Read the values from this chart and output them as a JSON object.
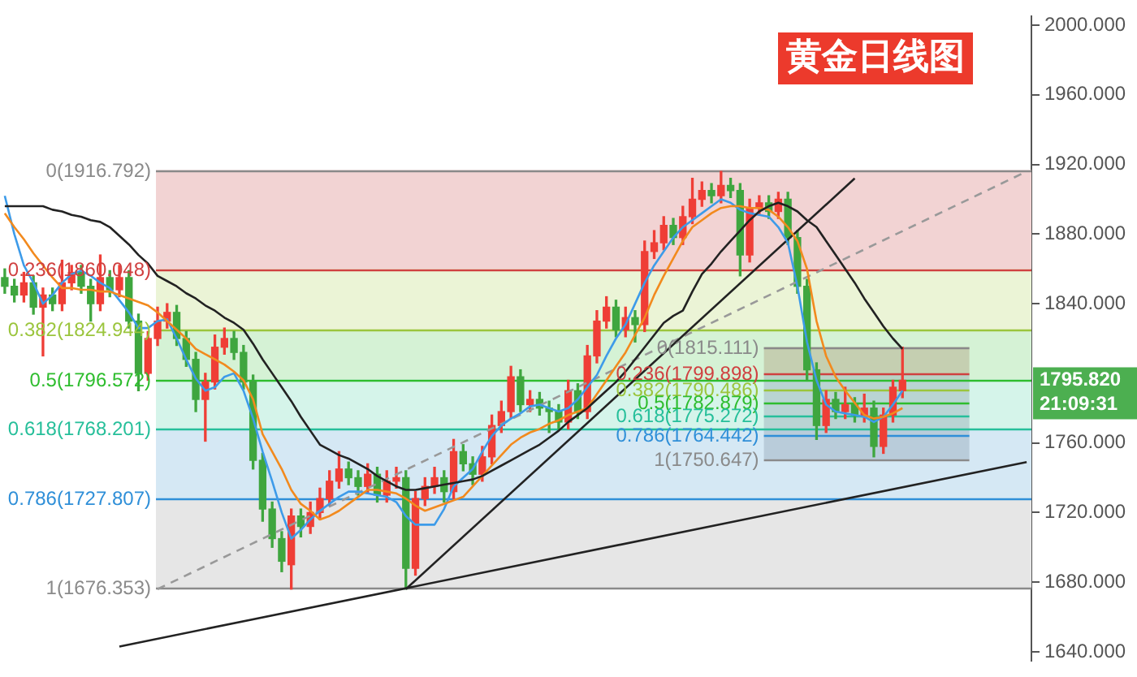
{
  "chart_data": {
    "type": "candlestick",
    "title": "黄金日线图",
    "categories": [
      null,
      null,
      null,
      null,
      null,
      null,
      null,
      null,
      null,
      null,
      null,
      null,
      null,
      null,
      null,
      null,
      null,
      null,
      null,
      null,
      null,
      null,
      null,
      null,
      null,
      null,
      null,
      null,
      null,
      null,
      null,
      null,
      null,
      null,
      null,
      null,
      null,
      null,
      null,
      null,
      null,
      null,
      null,
      null,
      null,
      null,
      null,
      null,
      null,
      null,
      null,
      null,
      null,
      null,
      null,
      null,
      null,
      null,
      null,
      null,
      null,
      null,
      null,
      null,
      null,
      null,
      null,
      null,
      null,
      null,
      null,
      null,
      null,
      null,
      null,
      null,
      null,
      null,
      null,
      null,
      null,
      null,
      null,
      null,
      null,
      null,
      null,
      null,
      null,
      null,
      null,
      null,
      null,
      null,
      null,
      null,
      null,
      null,
      null,
      null,
      null,
      null,
      null,
      null,
      null,
      null,
      null,
      null
    ],
    "series": [
      {
        "type": "line",
        "color": "#222222",
        "values": [
          1896,
          1896,
          1896,
          1896,
          1896,
          1894,
          1893,
          1891,
          1890,
          1888,
          1887,
          1884,
          1879,
          1874,
          1868,
          1863,
          1856,
          1853,
          1850,
          1846,
          1843,
          1839,
          1836,
          1832,
          1829,
          1825,
          1817,
          1808,
          1800,
          1792,
          1784,
          1775,
          1767,
          1759,
          1756,
          1753,
          1751,
          1748,
          1745,
          1741,
          1738,
          1735,
          1733,
          1733,
          1734,
          1735,
          1736,
          1737,
          1738,
          1739,
          1741,
          1744,
          1747,
          1750,
          1753,
          1756,
          1759,
          1763,
          1767,
          1772,
          1776,
          1780,
          1785,
          1790,
          1795,
          1801,
          1808,
          1815,
          1822,
          1829,
          1833,
          1836,
          1847,
          1857,
          1863,
          1870,
          1876,
          1882,
          1888,
          1893,
          1896,
          1898,
          1896,
          1893,
          1888,
          1884,
          1876,
          1868,
          1860,
          1852,
          1843,
          1835,
          1827,
          1820,
          1814,
          null,
          null,
          null,
          null,
          null,
          null,
          null,
          null,
          null,
          null,
          null,
          null,
          null
        ]
      },
      {
        "type": "line",
        "color": "#f28a1e",
        "values": [
          1892,
          1884,
          1877,
          1869,
          1862,
          1855,
          1849,
          1849,
          1848,
          1848,
          1847,
          1847,
          1845,
          1843,
          1841,
          1839,
          1835,
          1830,
          1825,
          1820,
          1814,
          1811,
          1808,
          1805,
          1801,
          1796,
          1785,
          1765,
          1755,
          1745,
          1733,
          1725,
          1721,
          1716,
          1718,
          1721,
          1725,
          1729,
          1733,
          1733,
          1732,
          1731,
          1728,
          1724,
          1721,
          1723,
          1725,
          1727,
          1729,
          1735,
          1741,
          1747,
          1753,
          1759,
          1763,
          1766,
          1768,
          1771,
          1773,
          1776,
          1778,
          1780,
          1788,
          1796,
          1804,
          1812,
          1822,
          1832,
          1845,
          1856,
          1866,
          1876,
          1884,
          1888,
          1892,
          1895,
          1896,
          1896,
          1895,
          1895,
          1894,
          1890,
          1884,
          1876,
          1860,
          1830,
          1810,
          1798,
          1790,
          1783,
          1776,
          1774,
          1775,
          1777,
          1780,
          null,
          null,
          null,
          null,
          null,
          null,
          null,
          null,
          null,
          null,
          null,
          null,
          null
        ]
      },
      {
        "type": "line",
        "color": "#3d9be9",
        "values": [
          1902,
          1880,
          1862,
          1852,
          1840,
          1845,
          1852,
          1857,
          1859,
          1856,
          1852,
          1849,
          1842,
          1835,
          1826,
          1826,
          1830,
          1831,
          1820,
          1808,
          1797,
          1790,
          1792,
          1798,
          1800,
          1790,
          1774,
          1755,
          1738,
          1720,
          1705,
          1710,
          1716,
          1721,
          1725,
          1729,
          1732,
          1732,
          1731,
          1730,
          1729,
          1726,
          1718,
          1713,
          1713,
          1713,
          1722,
          1735,
          1740,
          1745,
          1755,
          1764,
          1770,
          1774,
          1777,
          1781,
          1782,
          1780,
          1778,
          1780,
          1785,
          1792,
          1799,
          1810,
          1820,
          1828,
          1840,
          1852,
          1862,
          1870,
          1878,
          1884,
          1888,
          1892,
          1896,
          1900,
          1898,
          1894,
          1892,
          1891,
          1890,
          1884,
          1875,
          1850,
          1818,
          1796,
          1782,
          1778,
          1777,
          1776,
          1775,
          1772,
          1775,
          1782,
          1790,
          null,
          null,
          null,
          null,
          null,
          null,
          null,
          null,
          null,
          null,
          null,
          null,
          null
        ]
      },
      {
        "type": "line",
        "color": "#222222",
        "values": [
          null,
          null,
          null,
          null,
          null,
          null,
          null,
          null,
          null,
          null,
          null,
          null,
          1643,
          null,
          null,
          null,
          null,
          null,
          null,
          null,
          null,
          null,
          null,
          null,
          null,
          null,
          null,
          null,
          null,
          null,
          null,
          null,
          null,
          null,
          null,
          null,
          null,
          null,
          null,
          null,
          null,
          null,
          null,
          null,
          null,
          null,
          null,
          null,
          null,
          null,
          null,
          null,
          null,
          null,
          null,
          null,
          null,
          null,
          null,
          null,
          null,
          null,
          null,
          null,
          null,
          null,
          null,
          null,
          null,
          null,
          null,
          null,
          null,
          null,
          null,
          null,
          null,
          null,
          null,
          null,
          null,
          null,
          null,
          null,
          null,
          null,
          null,
          null,
          null,
          null,
          null,
          null,
          null,
          null,
          null,
          null,
          null,
          null,
          null,
          null,
          null,
          null,
          null,
          null,
          null,
          null,
          null,
          1749
        ]
      },
      {
        "type": "line",
        "color": "#222222",
        "values": [
          null,
          null,
          null,
          null,
          null,
          null,
          null,
          null,
          null,
          null,
          null,
          null,
          null,
          null,
          null,
          null,
          null,
          null,
          null,
          null,
          null,
          null,
          null,
          null,
          null,
          null,
          null,
          null,
          null,
          null,
          null,
          null,
          null,
          null,
          null,
          null,
          null,
          null,
          null,
          null,
          null,
          null,
          1676,
          null,
          null,
          null,
          null,
          null,
          null,
          null,
          null,
          null,
          null,
          null,
          null,
          null,
          null,
          null,
          null,
          null,
          null,
          null,
          null,
          null,
          null,
          null,
          null,
          null,
          null,
          null,
          null,
          null,
          null,
          null,
          null,
          null,
          null,
          null,
          null,
          null,
          null,
          null,
          null,
          null,
          null,
          null,
          null,
          null,
          null,
          1912,
          null,
          null,
          null,
          null,
          null,
          null,
          null,
          null,
          null,
          null,
          null,
          null,
          null,
          null,
          null,
          null,
          null,
          null
        ]
      },
      {
        "type": "line",
        "color": "#999999",
        "line_style": "dashed",
        "values": [
          null,
          null,
          null,
          null,
          null,
          null,
          null,
          null,
          null,
          null,
          null,
          null,
          null,
          null,
          null,
          null,
          1676,
          null,
          null,
          null,
          null,
          null,
          null,
          null,
          null,
          null,
          null,
          null,
          null,
          null,
          null,
          null,
          null,
          null,
          null,
          null,
          null,
          null,
          null,
          null,
          null,
          null,
          null,
          null,
          null,
          null,
          null,
          null,
          null,
          null,
          null,
          null,
          null,
          null,
          null,
          null,
          null,
          null,
          null,
          null,
          null,
          null,
          null,
          null,
          null,
          null,
          null,
          null,
          null,
          null,
          null,
          null,
          null,
          null,
          null,
          null,
          null,
          null,
          null,
          null,
          null,
          null,
          null,
          null,
          null,
          null,
          null,
          null,
          null,
          null,
          null,
          null,
          null,
          null,
          null,
          null,
          null,
          null,
          null,
          null,
          null,
          null,
          null,
          null,
          null,
          null,
          null,
          1916
        ]
      },
      {
        "type": "candlestick",
        "ohlc": [
          [
            1855,
            1860,
            1846,
            1850
          ],
          [
            1850,
            1854,
            1841,
            1845
          ],
          [
            1845,
            1858,
            1841,
            1852
          ],
          [
            1852,
            1856,
            1834,
            1838
          ],
          [
            1838,
            1849,
            1810,
            1845
          ],
          [
            1845,
            1849,
            1836,
            1840
          ],
          [
            1840,
            1865,
            1836,
            1852
          ],
          [
            1852,
            1862,
            1848,
            1858
          ],
          [
            1858,
            1862,
            1846,
            1850
          ],
          [
            1850,
            1854,
            1830,
            1840
          ],
          [
            1840,
            1868,
            1836,
            1855
          ],
          [
            1855,
            1859,
            1844,
            1848
          ],
          [
            1848,
            1862,
            1844,
            1855
          ],
          [
            1855,
            1859,
            1826,
            1830
          ],
          [
            1830,
            1834,
            1790,
            1800
          ],
          [
            1800,
            1824,
            1796,
            1820
          ],
          [
            1820,
            1838,
            1816,
            1830
          ],
          [
            1830,
            1840,
            1826,
            1835
          ],
          [
            1835,
            1839,
            1816,
            1820
          ],
          [
            1820,
            1824,
            1804,
            1808
          ],
          [
            1808,
            1812,
            1778,
            1785
          ],
          [
            1785,
            1800,
            1761,
            1795
          ],
          [
            1795,
            1822,
            1791,
            1815
          ],
          [
            1815,
            1826,
            1811,
            1820
          ],
          [
            1820,
            1824,
            1808,
            1812
          ],
          [
            1812,
            1816,
            1791,
            1795
          ],
          [
            1795,
            1799,
            1745,
            1750
          ],
          [
            1750,
            1754,
            1715,
            1722
          ],
          [
            1722,
            1726,
            1700,
            1705
          ],
          [
            1705,
            1709,
            1686,
            1692
          ],
          [
            1690,
            1722,
            1676,
            1718
          ],
          [
            1718,
            1722,
            1706,
            1712
          ],
          [
            1712,
            1726,
            1708,
            1720
          ],
          [
            1720,
            1734,
            1716,
            1728
          ],
          [
            1728,
            1744,
            1724,
            1738
          ],
          [
            1738,
            1755,
            1734,
            1745
          ],
          [
            1745,
            1749,
            1736,
            1740
          ],
          [
            1740,
            1744,
            1730,
            1735
          ],
          [
            1735,
            1748,
            1731,
            1742
          ],
          [
            1742,
            1746,
            1726,
            1730
          ],
          [
            1730,
            1744,
            1726,
            1738
          ],
          [
            1738,
            1746,
            1734,
            1740
          ],
          [
            1740,
            1744,
            1676,
            1688
          ],
          [
            1688,
            1732,
            1684,
            1728
          ],
          [
            1728,
            1740,
            1724,
            1735
          ],
          [
            1735,
            1746,
            1731,
            1740
          ],
          [
            1740,
            1744,
            1726,
            1732
          ],
          [
            1732,
            1762,
            1728,
            1755
          ],
          [
            1755,
            1759,
            1744,
            1748
          ],
          [
            1748,
            1752,
            1736,
            1742
          ],
          [
            1742,
            1758,
            1738,
            1752
          ],
          [
            1752,
            1776,
            1748,
            1770
          ],
          [
            1770,
            1784,
            1766,
            1778
          ],
          [
            1778,
            1804,
            1774,
            1798
          ],
          [
            1798,
            1802,
            1778,
            1782
          ],
          [
            1782,
            1790,
            1778,
            1785
          ],
          [
            1785,
            1789,
            1776,
            1780
          ],
          [
            1780,
            1784,
            1766,
            1778
          ],
          [
            1778,
            1782,
            1768,
            1772
          ],
          [
            1772,
            1796,
            1768,
            1790
          ],
          [
            1790,
            1794,
            1774,
            1778
          ],
          [
            1778,
            1816,
            1774,
            1810
          ],
          [
            1810,
            1836,
            1806,
            1830
          ],
          [
            1830,
            1844,
            1826,
            1838
          ],
          [
            1838,
            1842,
            1821,
            1825
          ],
          [
            1825,
            1838,
            1821,
            1832
          ],
          [
            1832,
            1836,
            1818,
            1828
          ],
          [
            1828,
            1876,
            1824,
            1870
          ],
          [
            1870,
            1882,
            1866,
            1875
          ],
          [
            1875,
            1890,
            1871,
            1885
          ],
          [
            1885,
            1889,
            1874,
            1878
          ],
          [
            1878,
            1896,
            1874,
            1890
          ],
          [
            1890,
            1912,
            1886,
            1900
          ],
          [
            1900,
            1910,
            1896,
            1905
          ],
          [
            1905,
            1909,
            1898,
            1902
          ],
          [
            1902,
            1916,
            1898,
            1908
          ],
          [
            1908,
            1912,
            1901,
            1905
          ],
          [
            1905,
            1909,
            1856,
            1868
          ],
          [
            1868,
            1900,
            1864,
            1895
          ],
          [
            1895,
            1902,
            1891,
            1898
          ],
          [
            1898,
            1902,
            1889,
            1893
          ],
          [
            1893,
            1904,
            1889,
            1900
          ],
          [
            1900,
            1904,
            1874,
            1878
          ],
          [
            1878,
            1882,
            1846,
            1850
          ],
          [
            1850,
            1854,
            1796,
            1802
          ],
          [
            1802,
            1806,
            1762,
            1770
          ],
          [
            1770,
            1790,
            1766,
            1785
          ],
          [
            1785,
            1789,
            1774,
            1778
          ],
          [
            1778,
            1792,
            1774,
            1782
          ],
          [
            1782,
            1786,
            1772,
            1776
          ],
          [
            1776,
            1788,
            1772,
            1780
          ],
          [
            1780,
            1784,
            1752,
            1758
          ],
          [
            1758,
            1780,
            1754,
            1776
          ],
          [
            1776,
            1796,
            1772,
            1792
          ],
          [
            1790,
            1815,
            1786,
            1796
          ],
          null,
          null,
          null,
          null,
          null,
          null,
          null,
          null,
          null,
          null,
          null,
          null,
          null
        ],
        "colors": [
          "#3fa63f",
          "#3fa63f",
          "#ef3e36",
          "#3fa63f",
          "#ef3e36",
          "#3fa63f",
          "#ef3e36",
          "#ef3e36",
          "#3fa63f",
          "#3fa63f",
          "#ef3e36",
          "#3fa63f",
          "#ef3e36",
          "#3fa63f",
          "#3fa63f",
          "#ef3e36",
          "#ef3e36",
          "#ef3e36",
          "#3fa63f",
          "#3fa63f",
          "#3fa63f",
          "#ef3e36",
          "#ef3e36",
          "#ef3e36",
          "#3fa63f",
          "#3fa63f",
          "#3fa63f",
          "#3fa63f",
          "#3fa63f",
          "#3fa63f",
          "#ef3e36",
          "#3fa63f",
          "#ef3e36",
          "#ef3e36",
          "#ef3e36",
          "#ef3e36",
          "#3fa63f",
          "#3fa63f",
          "#ef3e36",
          "#3fa63f",
          "#ef3e36",
          "#ef3e36",
          "#3fa63f",
          "#ef3e36",
          "#ef3e36",
          "#ef3e36",
          "#3fa63f",
          "#ef3e36",
          "#3fa63f",
          "#3fa63f",
          "#ef3e36",
          "#ef3e36",
          "#ef3e36",
          "#ef3e36",
          "#3fa63f",
          "#ef3e36",
          "#3fa63f",
          "#3fa63f",
          "#3fa63f",
          "#ef3e36",
          "#3fa63f",
          "#ef3e36",
          "#ef3e36",
          "#ef3e36",
          "#3fa63f",
          "#ef3e36",
          "#3fa63f",
          "#ef3e36",
          "#ef3e36",
          "#ef3e36",
          "#3fa63f",
          "#ef3e36",
          "#ef3e36",
          "#ef3e36",
          "#3fa63f",
          "#ef3e36",
          "#3fa63f",
          "#3fa63f",
          "#ef3e36",
          "#ef3e36",
          "#3fa63f",
          "#ef3e36",
          "#3fa63f",
          "#3fa63f",
          "#3fa63f",
          "#3fa63f",
          "#ef3e36",
          "#3fa63f",
          "#ef3e36",
          "#3fa63f",
          "#ef3e36",
          "#3fa63f",
          "#ef3e36",
          "#ef3e36",
          "#ef3e36",
          null,
          null,
          null,
          null,
          null,
          null,
          null,
          null,
          null,
          null,
          null,
          null,
          null
        ]
      }
    ],
    "ylim": [
      1635,
      2005
    ],
    "yticks": [
      {
        "value": 1640,
        "label": "1640.000"
      },
      {
        "value": 1680,
        "label": "1680.000"
      },
      {
        "value": 1720,
        "label": "1720.000"
      },
      {
        "value": 1760,
        "label": "1760.000"
      },
      {
        "value": 1840,
        "label": "1840.000"
      },
      {
        "value": 1880,
        "label": "1880.000"
      },
      {
        "value": 1920,
        "label": "1920.000"
      },
      {
        "value": 1960,
        "label": "1960.000"
      },
      {
        "value": 2000,
        "label": "2000.000"
      }
    ],
    "tick_labels": "y",
    "legend": false,
    "marker": "none",
    "ref_lines": [
      {
        "axis": "y",
        "value": 1916.792,
        "label": "0(1916.792)",
        "color": "#8a8a8a"
      },
      {
        "axis": "y",
        "value": 1860.048,
        "label": "0.236(1860.048)",
        "color": "#d04040"
      },
      {
        "axis": "y",
        "value": 1824.944,
        "label": "0.382(1824.944)",
        "color": "#9bc53d"
      },
      {
        "axis": "y",
        "value": 1796.572,
        "label": "0.5(1796.572)",
        "color": "#2ebd2e"
      },
      {
        "axis": "y",
        "value": 1768.201,
        "label": "0.618(1768.201)",
        "color": "#26bf9a"
      },
      {
        "axis": "y",
        "value": 1727.807,
        "label": "0.786(1727.807)",
        "color": "#2f8fd8"
      },
      {
        "axis": "y",
        "value": 1676.353,
        "label": "1(1676.353)",
        "color": "#8a8a8a"
      },
      {
        "axis": "y",
        "value": 1815.111,
        "label": "0(1815.111)",
        "color": "#8a8a8a"
      },
      {
        "axis": "y",
        "value": 1799.898,
        "label": "0.236(1799.898)",
        "color": "#d04040"
      },
      {
        "axis": "y",
        "value": 1790.486,
        "label": "0.382(1790.486)",
        "color": "#9bc53d"
      },
      {
        "axis": "y",
        "value": 1782.879,
        "label": "0.5(1782.879)",
        "color": "#2ebd2e"
      },
      {
        "axis": "y",
        "value": 1775.272,
        "label": "0.618(1775.272)",
        "color": "#26bf9a"
      },
      {
        "axis": "y",
        "value": 1764.442,
        "label": "0.786(1764.442)",
        "color": "#2f8fd8"
      },
      {
        "axis": "y",
        "value": 1750.647,
        "label": "1(1750.647)",
        "color": "#8a8a8a"
      }
    ],
    "bands": [
      {
        "axis": "y",
        "from": 1860.048,
        "to": 1916.792,
        "color": "#f2d3d3"
      },
      {
        "axis": "y",
        "from": 1824.944,
        "to": 1860.048,
        "color": "#ebf4d6"
      },
      {
        "axis": "y",
        "from": 1796.572,
        "to": 1824.944,
        "color": "#d5f2d5"
      },
      {
        "axis": "y",
        "from": 1768.201,
        "to": 1796.572,
        "color": "#d5f4ea"
      },
      {
        "axis": "y",
        "from": 1727.807,
        "to": 1768.201,
        "color": "#d5e8f4"
      },
      {
        "axis": "y",
        "from": 1676.353,
        "to": 1727.807,
        "color": "#e6e6e6"
      },
      {
        "axis": "y",
        "from": 1799.898,
        "to": 1815.111,
        "color": "#a89070"
      },
      {
        "axis": "y",
        "from": 1750.647,
        "to": 1799.898,
        "color": "#8899aa"
      }
    ],
    "annotations": [
      "1795.820",
      "21:09:31"
    ]
  }
}
